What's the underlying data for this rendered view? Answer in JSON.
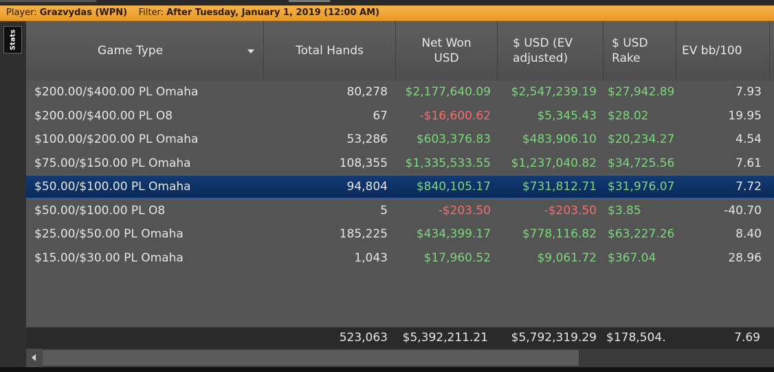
{
  "filter_bar": {
    "player_label": "Player:",
    "player_value": "Grazvydas (WPN)",
    "filter_label": "Filter:",
    "filter_value": "After Tuesday, January 1, 2019 (12:00 AM)"
  },
  "sidebar": {
    "stats_tab": "Stats"
  },
  "columns": [
    {
      "key": "game",
      "label": "Game Type"
    },
    {
      "key": "hands",
      "label": "Total Hands"
    },
    {
      "key": "net",
      "label": "Net Won USD"
    },
    {
      "key": "ev",
      "label": "$ USD (EV adjusted)"
    },
    {
      "key": "rake",
      "label": "$ USD Rake"
    },
    {
      "key": "evbb",
      "label": "EV bb/100"
    }
  ],
  "rows": [
    {
      "game": "$200.00/$400.00 PL Omaha",
      "hands": "80,278",
      "net": "$2,177,640.09",
      "ev": "$2,547,239.19",
      "rake": "$27,942.89",
      "evbb": "7.93"
    },
    {
      "game": "$200.00/$400.00 PL O8",
      "hands": "67",
      "net": "-$16,600.62",
      "ev": "$5,345.43",
      "rake": "$28.02",
      "evbb": "19.95"
    },
    {
      "game": "$100.00/$200.00 PL Omaha",
      "hands": "53,286",
      "net": "$603,376.83",
      "ev": "$483,906.10",
      "rake": "$20,234.27",
      "evbb": "4.54"
    },
    {
      "game": "$75.00/$150.00 PL Omaha",
      "hands": "108,355",
      "net": "$1,335,533.55",
      "ev": "$1,237,040.82",
      "rake": "$34,725.56",
      "evbb": "7.61"
    },
    {
      "game": "$50.00/$100.00 PL Omaha",
      "hands": "94,804",
      "net": "$840,105.17",
      "ev": "$731,812.71",
      "rake": "$31,976.07",
      "evbb": "7.72"
    },
    {
      "game": "$50.00/$100.00 PL O8",
      "hands": "5",
      "net": "-$203.50",
      "ev": "-$203.50",
      "rake": "$3.85",
      "evbb": "-40.70"
    },
    {
      "game": "$25.00/$50.00 PL Omaha",
      "hands": "185,225",
      "net": "$434,399.17",
      "ev": "$778,116.82",
      "rake": "$63,227.26",
      "evbb": "8.40"
    },
    {
      "game": "$15.00/$30.00 PL Omaha",
      "hands": "1,043",
      "net": "$17,960.52",
      "ev": "$9,061.72",
      "rake": "$367.04",
      "evbb": "28.96"
    }
  ],
  "selected_row_index": 4,
  "totals": {
    "hands": "523,063",
    "net": "$5,392,211.21",
    "ev": "$5,792,319.29",
    "rake": "$178,504.",
    "evbb": "7.69"
  },
  "colors": {
    "positive": "#7dd87d",
    "negative": "#f07070",
    "accent": "#f0a030",
    "selection": "#0a2a5a"
  }
}
